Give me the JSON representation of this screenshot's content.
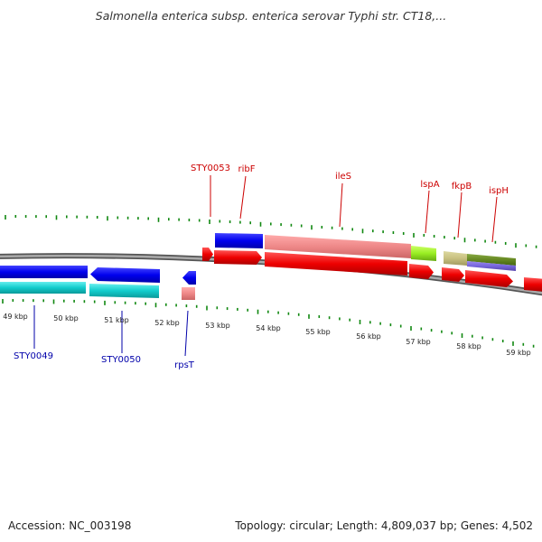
{
  "title": "Salmonella enterica subsp. enterica serovar Typhi str. CT18,...",
  "footer": {
    "accession": "Accession: NC_003198",
    "summary": "Topology: circular; Length: 4,809,037 bp; Genes: 4,502"
  },
  "ticks": [
    "49 kbp",
    "50 kbp",
    "51 kbp",
    "52 kbp",
    "53 kbp",
    "54 kbp",
    "55 kbp",
    "56 kbp",
    "57 kbp",
    "58 kbp",
    "59 kbp"
  ],
  "labels_forward": [
    "STY0053",
    "ribF",
    "ileS",
    "lspA",
    "fkpB",
    "ispH"
  ],
  "labels_reverse": [
    "STY0049",
    "STY0050",
    "rpsT"
  ],
  "colors": {
    "forward_label": "#cc0000",
    "reverse_label": "#0000aa",
    "tick_mark": "#118811",
    "cds_forward": "#ee0000",
    "cds_reverse": "#0000ee",
    "gene_forward": "#ee8888",
    "gene_reverse": "#11cccc",
    "backbone": "#888888"
  }
}
